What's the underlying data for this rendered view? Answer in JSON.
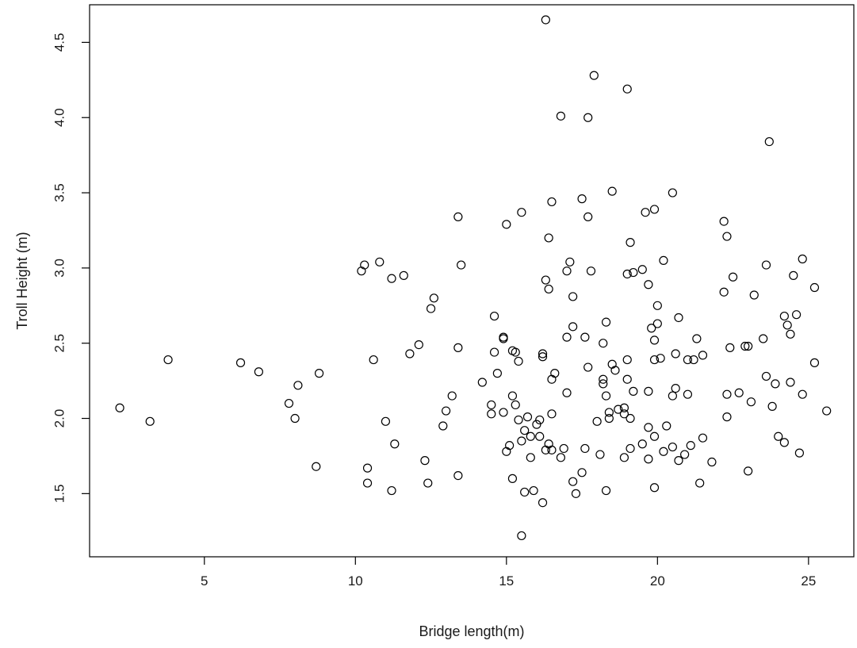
{
  "chart_data": {
    "type": "scatter",
    "title": "",
    "xlabel": "Bridge length(m)",
    "ylabel": "Troll Height (m)",
    "xlim": [
      1.2,
      26.5
    ],
    "ylim": [
      1.08,
      4.75
    ],
    "x_ticks": [
      "5",
      "10",
      "15",
      "20",
      "25"
    ],
    "y_ticks": [
      "1.5",
      "2.0",
      "2.5",
      "3.0",
      "3.5",
      "4.0",
      "4.5"
    ],
    "grid": false,
    "legend": "none",
    "marker": "open-circle",
    "points": [
      [
        2.2,
        2.07
      ],
      [
        3.2,
        1.98
      ],
      [
        3.8,
        2.39
      ],
      [
        6.2,
        2.37
      ],
      [
        6.8,
        2.31
      ],
      [
        7.8,
        2.1
      ],
      [
        8.0,
        2.0
      ],
      [
        8.1,
        2.22
      ],
      [
        8.7,
        1.68
      ],
      [
        8.8,
        2.3
      ],
      [
        10.2,
        2.98
      ],
      [
        10.3,
        3.02
      ],
      [
        10.4,
        1.67
      ],
      [
        10.4,
        1.57
      ],
      [
        10.6,
        2.39
      ],
      [
        10.8,
        3.04
      ],
      [
        11.0,
        1.98
      ],
      [
        11.2,
        1.52
      ],
      [
        11.2,
        2.93
      ],
      [
        11.3,
        1.83
      ],
      [
        11.6,
        2.95
      ],
      [
        11.8,
        2.43
      ],
      [
        12.1,
        2.49
      ],
      [
        12.3,
        1.72
      ],
      [
        12.4,
        1.57
      ],
      [
        12.5,
        2.73
      ],
      [
        12.6,
        2.8
      ],
      [
        12.9,
        1.95
      ],
      [
        13.0,
        2.05
      ],
      [
        13.2,
        2.15
      ],
      [
        13.4,
        1.62
      ],
      [
        13.4,
        3.34
      ],
      [
        13.4,
        2.47
      ],
      [
        13.5,
        3.02
      ],
      [
        14.2,
        2.24
      ],
      [
        14.5,
        2.09
      ],
      [
        14.5,
        2.03
      ],
      [
        14.6,
        2.68
      ],
      [
        14.6,
        2.44
      ],
      [
        14.7,
        2.3
      ],
      [
        14.9,
        2.54
      ],
      [
        14.9,
        2.53
      ],
      [
        14.9,
        2.04
      ],
      [
        15.0,
        1.78
      ],
      [
        15.0,
        3.29
      ],
      [
        15.1,
        1.82
      ],
      [
        15.2,
        1.6
      ],
      [
        15.2,
        2.15
      ],
      [
        15.2,
        2.45
      ],
      [
        15.3,
        2.44
      ],
      [
        15.3,
        2.09
      ],
      [
        15.4,
        2.38
      ],
      [
        15.4,
        1.99
      ],
      [
        15.5,
        1.22
      ],
      [
        15.5,
        1.85
      ],
      [
        15.5,
        3.37
      ],
      [
        15.6,
        1.92
      ],
      [
        15.6,
        1.51
      ],
      [
        15.7,
        2.01
      ],
      [
        15.8,
        1.74
      ],
      [
        15.8,
        1.88
      ],
      [
        15.9,
        1.52
      ],
      [
        16.0,
        1.96
      ],
      [
        16.1,
        1.88
      ],
      [
        16.1,
        1.99
      ],
      [
        16.2,
        2.41
      ],
      [
        16.2,
        1.44
      ],
      [
        16.2,
        2.43
      ],
      [
        16.3,
        2.92
      ],
      [
        16.3,
        4.65
      ],
      [
        16.3,
        1.79
      ],
      [
        16.4,
        2.86
      ],
      [
        16.4,
        3.2
      ],
      [
        16.4,
        1.83
      ],
      [
        16.5,
        2.26
      ],
      [
        16.5,
        1.79
      ],
      [
        16.5,
        2.03
      ],
      [
        16.5,
        3.44
      ],
      [
        16.6,
        2.3
      ],
      [
        16.8,
        1.74
      ],
      [
        16.8,
        4.01
      ],
      [
        16.9,
        1.8
      ],
      [
        17.0,
        2.54
      ],
      [
        17.0,
        2.17
      ],
      [
        17.0,
        2.98
      ],
      [
        17.1,
        3.04
      ],
      [
        17.2,
        2.81
      ],
      [
        17.2,
        1.58
      ],
      [
        17.2,
        2.61
      ],
      [
        17.3,
        1.5
      ],
      [
        17.5,
        1.64
      ],
      [
        17.5,
        3.46
      ],
      [
        17.6,
        2.54
      ],
      [
        17.6,
        1.8
      ],
      [
        17.7,
        2.34
      ],
      [
        17.7,
        3.34
      ],
      [
        17.7,
        4.0
      ],
      [
        17.8,
        2.98
      ],
      [
        17.9,
        4.28
      ],
      [
        18.0,
        1.98
      ],
      [
        18.1,
        1.76
      ],
      [
        18.2,
        2.5
      ],
      [
        18.2,
        2.26
      ],
      [
        18.2,
        2.23
      ],
      [
        18.3,
        2.15
      ],
      [
        18.3,
        1.52
      ],
      [
        18.3,
        2.64
      ],
      [
        18.4,
        2.0
      ],
      [
        18.4,
        2.04
      ],
      [
        18.5,
        2.36
      ],
      [
        18.5,
        3.51
      ],
      [
        18.6,
        2.32
      ],
      [
        18.7,
        2.06
      ],
      [
        18.9,
        2.03
      ],
      [
        18.9,
        2.07
      ],
      [
        18.9,
        1.74
      ],
      [
        19.0,
        2.96
      ],
      [
        19.0,
        2.39
      ],
      [
        19.0,
        2.26
      ],
      [
        19.0,
        4.19
      ],
      [
        19.1,
        3.17
      ],
      [
        19.1,
        2.0
      ],
      [
        19.1,
        1.8
      ],
      [
        19.2,
        2.18
      ],
      [
        19.2,
        2.97
      ],
      [
        19.5,
        2.99
      ],
      [
        19.5,
        1.83
      ],
      [
        19.6,
        3.37
      ],
      [
        19.7,
        2.89
      ],
      [
        19.7,
        2.18
      ],
      [
        19.7,
        1.94
      ],
      [
        19.7,
        1.73
      ],
      [
        19.8,
        2.6
      ],
      [
        19.9,
        1.54
      ],
      [
        19.9,
        1.88
      ],
      [
        19.9,
        2.39
      ],
      [
        19.9,
        3.39
      ],
      [
        19.9,
        2.52
      ],
      [
        20.0,
        2.63
      ],
      [
        20.0,
        2.75
      ],
      [
        20.1,
        2.4
      ],
      [
        20.2,
        3.05
      ],
      [
        20.2,
        1.78
      ],
      [
        20.3,
        1.95
      ],
      [
        20.5,
        1.81
      ],
      [
        20.5,
        3.5
      ],
      [
        20.5,
        2.15
      ],
      [
        20.6,
        2.43
      ],
      [
        20.6,
        2.2
      ],
      [
        20.7,
        2.67
      ],
      [
        20.7,
        1.72
      ],
      [
        20.9,
        1.76
      ],
      [
        21.0,
        2.39
      ],
      [
        21.0,
        2.16
      ],
      [
        21.1,
        1.82
      ],
      [
        21.2,
        2.39
      ],
      [
        21.3,
        2.53
      ],
      [
        21.4,
        1.57
      ],
      [
        21.5,
        1.87
      ],
      [
        21.5,
        2.42
      ],
      [
        21.8,
        1.71
      ],
      [
        22.2,
        3.31
      ],
      [
        22.2,
        2.84
      ],
      [
        22.3,
        3.21
      ],
      [
        22.3,
        2.16
      ],
      [
        22.3,
        2.01
      ],
      [
        22.4,
        2.47
      ],
      [
        22.5,
        2.94
      ],
      [
        22.7,
        2.17
      ],
      [
        22.9,
        2.48
      ],
      [
        23.0,
        2.48
      ],
      [
        23.0,
        1.65
      ],
      [
        23.1,
        2.11
      ],
      [
        23.2,
        2.82
      ],
      [
        23.5,
        2.53
      ],
      [
        23.6,
        2.28
      ],
      [
        23.6,
        3.02
      ],
      [
        23.7,
        3.84
      ],
      [
        23.8,
        2.08
      ],
      [
        23.9,
        2.23
      ],
      [
        24.0,
        1.88
      ],
      [
        24.2,
        2.68
      ],
      [
        24.2,
        1.84
      ],
      [
        24.3,
        2.62
      ],
      [
        24.4,
        2.24
      ],
      [
        24.4,
        2.56
      ],
      [
        24.5,
        2.95
      ],
      [
        24.6,
        2.69
      ],
      [
        24.7,
        1.77
      ],
      [
        24.8,
        2.16
      ],
      [
        24.8,
        3.06
      ],
      [
        25.2,
        2.37
      ],
      [
        25.2,
        2.87
      ],
      [
        25.6,
        2.05
      ]
    ]
  }
}
